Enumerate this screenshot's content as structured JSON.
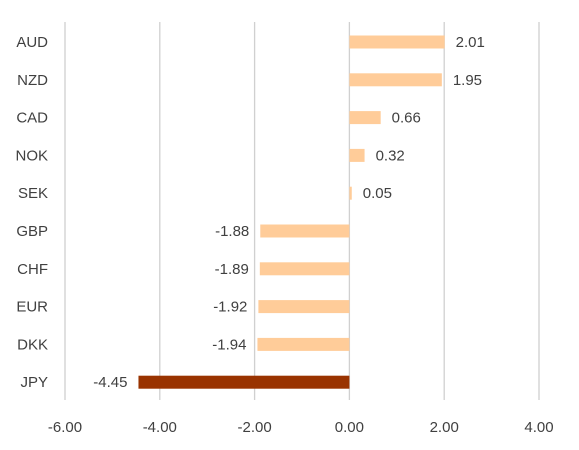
{
  "chart_data": {
    "type": "bar",
    "orientation": "horizontal",
    "categories": [
      "AUD",
      "NZD",
      "CAD",
      "NOK",
      "SEK",
      "GBP",
      "CHF",
      "EUR",
      "DKK",
      "JPY"
    ],
    "values": [
      2.01,
      1.95,
      0.66,
      0.32,
      0.05,
      -1.88,
      -1.89,
      -1.92,
      -1.94,
      -4.45
    ],
    "data_labels": [
      "2.01",
      "1.95",
      "0.66",
      "0.32",
      "0.05",
      "-1.88",
      "-1.89",
      "-1.92",
      "-1.94",
      "-4.45"
    ],
    "xlim": [
      -6,
      4
    ],
    "x_ticks": [
      -6,
      -4,
      -2,
      0,
      2,
      4
    ],
    "x_tick_labels": [
      "-6.00",
      "-4.00",
      "-2.00",
      "0.00",
      "2.00",
      "4.00"
    ],
    "grid": "vertical",
    "legend": "none",
    "title": "",
    "xlabel": "",
    "ylabel": "",
    "colors": {
      "default_bar": "#ffcc99",
      "highlight_bar": "#993300",
      "grid": "#d0d0d0",
      "text": "#404040"
    },
    "highlight_category": "JPY"
  }
}
